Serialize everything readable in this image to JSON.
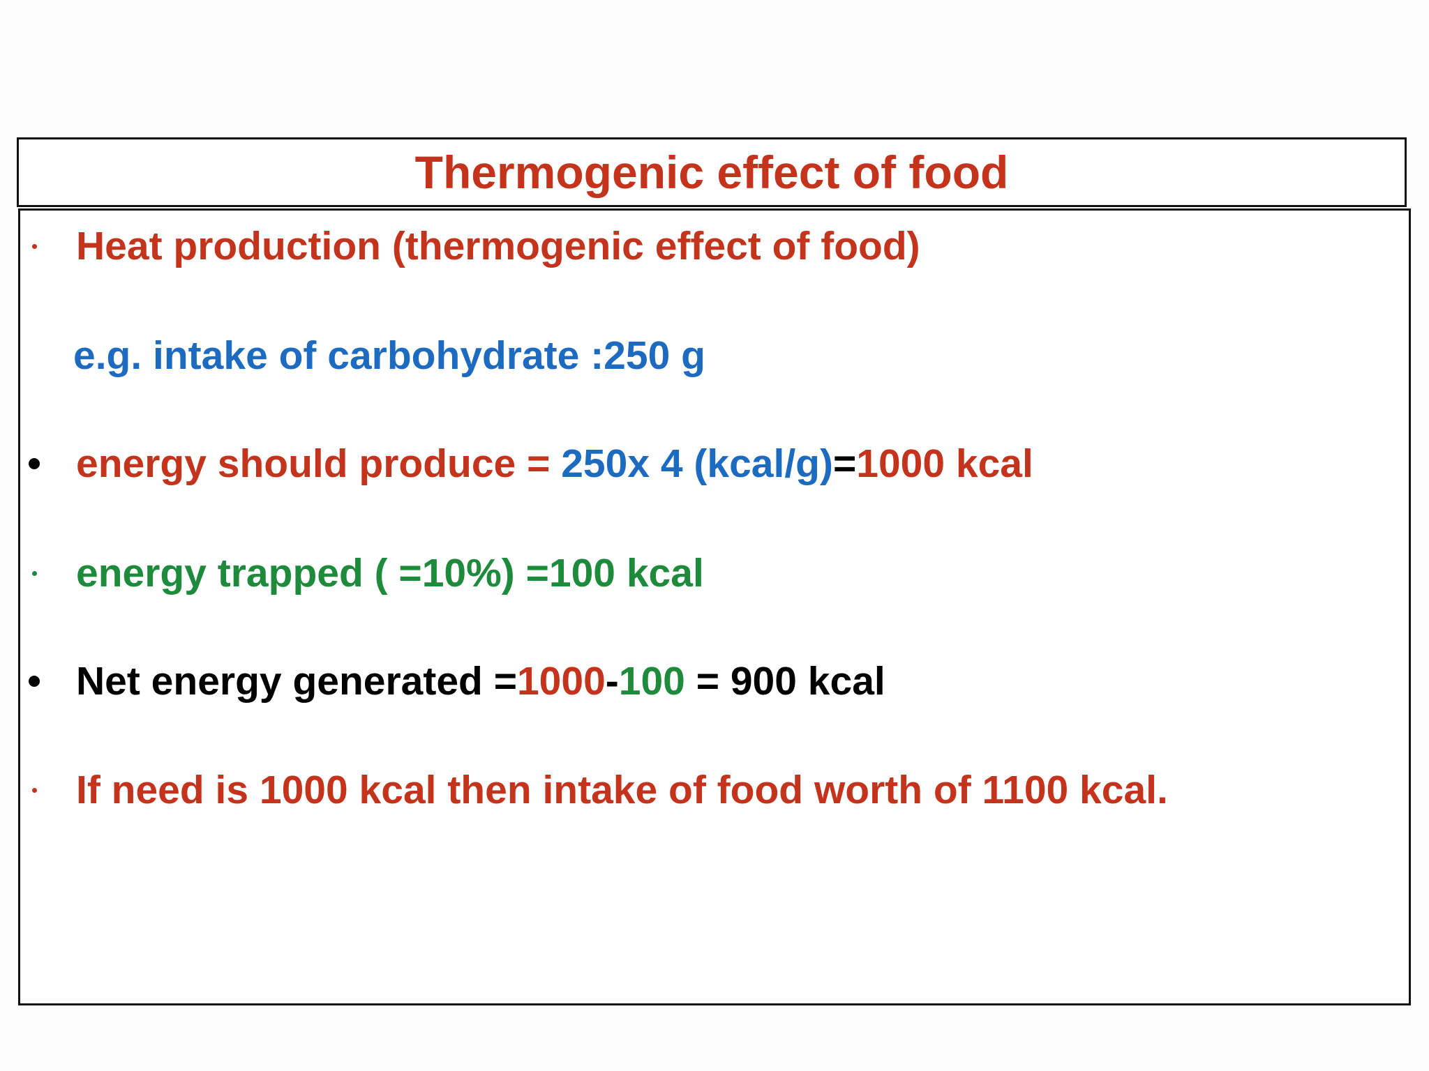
{
  "title": {
    "text": "Thermogenic effect of food",
    "color": "#c4331b"
  },
  "lines": [
    {
      "bullet": "small",
      "color": "#c4331b",
      "segments": [
        {
          "text": "Heat production (thermogenic effect of food)",
          "color": "#c4331b"
        }
      ]
    },
    {
      "bullet": "none",
      "color": "#1d6bc1",
      "segments": [
        {
          "text": "e.g. intake of carbohydrate :250 g",
          "color": "#1d6bc1"
        }
      ]
    },
    {
      "bullet": "large",
      "color": "#000000",
      "segments": [
        {
          "text": "energy should produce = ",
          "color": "#c4331b"
        },
        {
          "text": "250x 4 (kcal/g)",
          "color": "#1d6bc1"
        },
        {
          "text": "=",
          "color": "#000000"
        },
        {
          "text": "1000 kcal",
          "color": "#c4331b"
        }
      ]
    },
    {
      "bullet": "small",
      "color": "#1e8a3b",
      "segments": [
        {
          "text": "energy trapped ( =10%) =100 kcal",
          "color": "#1e8a3b"
        }
      ]
    },
    {
      "bullet": "large",
      "color": "#000000",
      "segments": [
        {
          "text": "Net energy generated =",
          "color": "#000000"
        },
        {
          "text": "1000",
          "color": "#c4331b"
        },
        {
          "text": "-",
          "color": "#000000"
        },
        {
          "text": "100",
          "color": "#1e8a3b"
        },
        {
          "text": " = 900 kcal",
          "color": "#000000"
        }
      ]
    },
    {
      "bullet": "small",
      "color": "#c4331b",
      "segments": [
        {
          "text": "If need is 1000 kcal then intake of food worth of 1100 kcal.",
          "color": "#c4331b"
        }
      ]
    }
  ]
}
